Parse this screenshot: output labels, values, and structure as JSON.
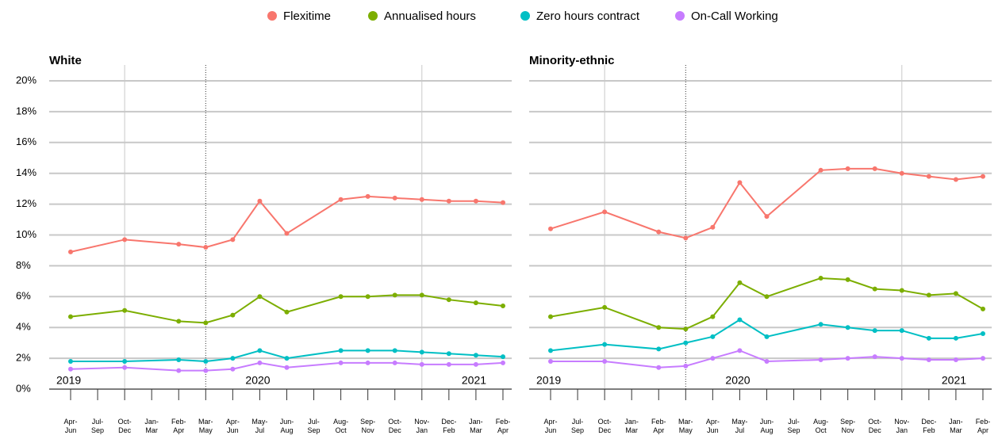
{
  "chart_data": [
    {
      "type": "line",
      "title": "White",
      "categories": [
        "Apr-Jun",
        "Jul-Sep",
        "Oct-Dec",
        "Jan-Mar",
        "Feb-Apr",
        "Mar-May",
        "Apr-Jun",
        "May-Jul",
        "Jun-Aug",
        "Jul-Sep",
        "Aug-Oct",
        "Sep-Nov",
        "Oct-Dec",
        "Nov-Jan",
        "Dec-Feb",
        "Jan-Mar",
        "Feb-Apr"
      ],
      "year_labels": [
        "2019",
        "2020",
        "2021"
      ],
      "ylim": [
        0,
        20
      ],
      "yticks": [
        {
          "value": 0,
          "label": "0%"
        },
        {
          "value": 2,
          "label": "2%"
        },
        {
          "value": 4,
          "label": "4%"
        },
        {
          "value": 6,
          "label": "6%"
        },
        {
          "value": 8,
          "label": "8%"
        },
        {
          "value": 10,
          "label": "10%"
        },
        {
          "value": 12,
          "label": "12%"
        },
        {
          "value": 14,
          "label": "14%"
        },
        {
          "value": 16,
          "label": "16%"
        },
        {
          "value": 18,
          "label": "18%"
        },
        {
          "value": 20,
          "label": "20%"
        }
      ],
      "grid": true,
      "series": [
        {
          "name": "Flexitime",
          "color": "#f8766d",
          "values": [
            8.9,
            null,
            9.7,
            null,
            9.4,
            9.2,
            9.7,
            12.2,
            10.1,
            null,
            12.3,
            12.5,
            12.4,
            12.3,
            12.2,
            12.2,
            12.1
          ]
        },
        {
          "name": "Annualised hours",
          "color": "#7cae00",
          "values": [
            4.7,
            null,
            5.1,
            null,
            4.4,
            4.3,
            4.8,
            6.0,
            5.0,
            null,
            6.0,
            6.0,
            6.1,
            6.1,
            5.8,
            5.6,
            5.4
          ]
        },
        {
          "name": "Zero hours contract",
          "color": "#00bfc4",
          "values": [
            1.8,
            null,
            1.8,
            null,
            1.9,
            1.8,
            2.0,
            2.5,
            2.0,
            null,
            2.5,
            2.5,
            2.5,
            2.4,
            2.3,
            2.2,
            2.1
          ]
        },
        {
          "name": "On-Call Working",
          "color": "#c77cff",
          "values": [
            1.3,
            null,
            1.4,
            null,
            1.2,
            1.2,
            1.3,
            1.7,
            1.4,
            null,
            1.7,
            1.7,
            1.7,
            1.6,
            1.6,
            1.6,
            1.7
          ]
        }
      ]
    },
    {
      "type": "line",
      "title": "Minority-ethnic",
      "categories": [
        "Apr-Jun",
        "Jul-Sep",
        "Oct-Dec",
        "Jan-Mar",
        "Feb-Apr",
        "Mar-May",
        "Apr-Jun",
        "May-Jul",
        "Jun-Aug",
        "Jul-Sep",
        "Aug-Oct",
        "Sep-Nov",
        "Oct-Dec",
        "Nov-Jan",
        "Dec-Feb",
        "Jan-Mar",
        "Feb-Apr"
      ],
      "year_labels": [
        "2019",
        "2020",
        "2021"
      ],
      "ylim": [
        0,
        20
      ],
      "grid": true,
      "series": [
        {
          "name": "Flexitime",
          "color": "#f8766d",
          "values": [
            10.4,
            null,
            11.5,
            null,
            10.2,
            9.8,
            10.5,
            13.4,
            11.2,
            null,
            14.2,
            14.3,
            14.3,
            14.0,
            13.8,
            13.6,
            13.8
          ]
        },
        {
          "name": "Annualised hours",
          "color": "#7cae00",
          "values": [
            4.7,
            null,
            5.3,
            null,
            4.0,
            3.9,
            4.7,
            6.9,
            6.0,
            null,
            7.2,
            7.1,
            6.5,
            6.4,
            6.1,
            6.2,
            5.2
          ]
        },
        {
          "name": "Zero hours contract",
          "color": "#00bfc4",
          "values": [
            2.5,
            null,
            2.9,
            null,
            2.6,
            3.0,
            3.4,
            4.5,
            3.4,
            null,
            4.2,
            4.0,
            3.8,
            3.8,
            3.3,
            3.3,
            3.6
          ]
        },
        {
          "name": "On-Call Working",
          "color": "#c77cff",
          "values": [
            1.8,
            null,
            1.8,
            null,
            1.4,
            1.5,
            2.0,
            2.5,
            1.8,
            null,
            1.9,
            2.0,
            2.1,
            2.0,
            1.9,
            1.9,
            2.0
          ]
        }
      ]
    }
  ]
}
